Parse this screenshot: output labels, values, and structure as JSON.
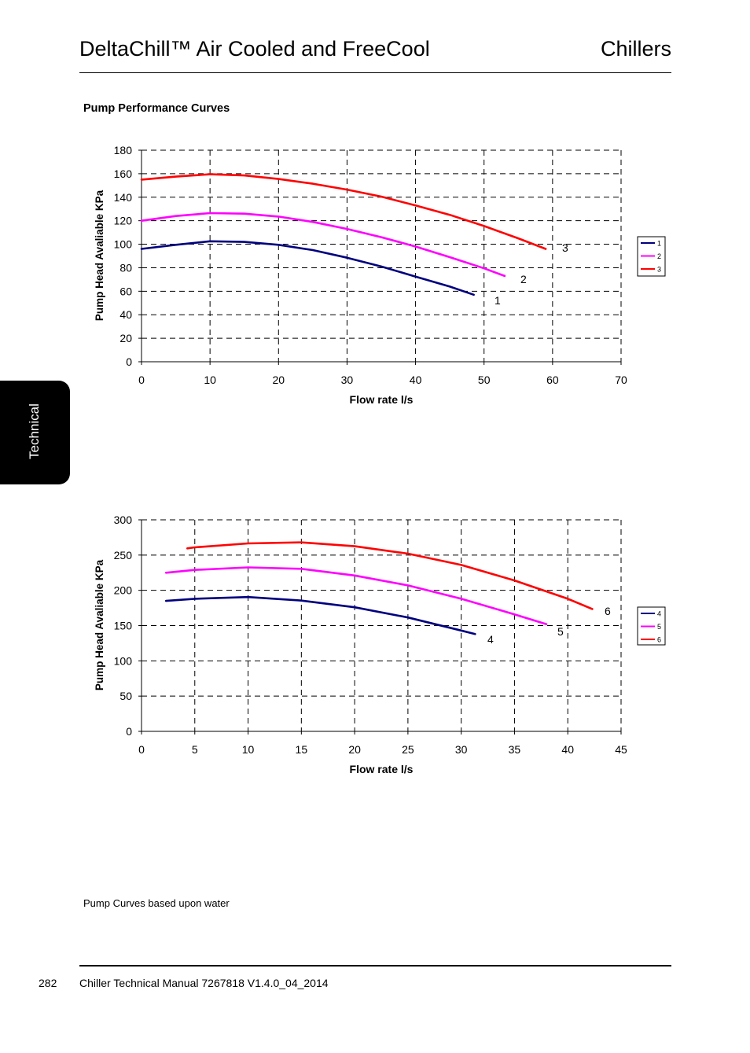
{
  "header": {
    "title": "DeltaChill™ Air Cooled and FreeCool",
    "right": "Chillers"
  },
  "section_title": "Pump Performance Curves",
  "side_tab": "Technical",
  "note": "Pump Curves based upon water",
  "footer": {
    "page_number": "282",
    "text": "Chiller Technical Manual 7267818 V1.4.0_04_2014"
  },
  "colors": {
    "navy": "#00007f",
    "magenta": "#ff00ff",
    "red": "#ff0000"
  },
  "chart_data": [
    {
      "type": "line",
      "xlabel": "Flow rate l/s",
      "ylabel": "Pump Head Avaliable KPa",
      "xlim": [
        0,
        70
      ],
      "ylim": [
        0,
        180
      ],
      "xticks": [
        0,
        10,
        20,
        30,
        40,
        50,
        60,
        70
      ],
      "yticks": [
        0,
        20,
        40,
        60,
        80,
        100,
        120,
        140,
        160,
        180
      ],
      "grid": true,
      "legend_position": "right",
      "series": [
        {
          "name": "1",
          "color": "#00007f",
          "x": [
            0,
            5,
            10,
            15,
            20,
            25,
            30,
            35,
            40,
            45,
            48.5
          ],
          "y": [
            96,
            99.5,
            102.5,
            102,
            99.5,
            95,
            88.5,
            81,
            72.5,
            64,
            57
          ]
        },
        {
          "name": "2",
          "color": "#ff00ff",
          "x": [
            0,
            5,
            10,
            15,
            20,
            25,
            30,
            35,
            40,
            45,
            50,
            53
          ],
          "y": [
            120,
            124,
            126.5,
            126,
            123.5,
            119,
            113,
            106,
            98,
            89,
            79.5,
            73
          ]
        },
        {
          "name": "3",
          "color": "#ff0000",
          "x": [
            0,
            5,
            10,
            15,
            20,
            25,
            30,
            35,
            40,
            45,
            50,
            55,
            59
          ]
        },
        {
          "name": "3-y",
          "color": "#ff0000",
          "y": [
            155,
            157.5,
            159.5,
            158.5,
            155.5,
            151.5,
            146.5,
            140.5,
            133,
            125,
            115.5,
            105,
            96
          ]
        }
      ],
      "end_labels": [
        "1",
        "2",
        "3"
      ]
    },
    {
      "type": "line",
      "xlabel": "Flow rate l/s",
      "ylabel": "Pump Head Avaliable KPa",
      "xlim": [
        0,
        45
      ],
      "ylim": [
        0,
        300
      ],
      "xticks": [
        0,
        5,
        10,
        15,
        20,
        25,
        30,
        35,
        40,
        45
      ],
      "yticks": [
        0,
        50,
        100,
        150,
        200,
        250,
        300
      ],
      "grid": true,
      "legend_position": "right",
      "series": [
        {
          "name": "4",
          "color": "#00007f",
          "x": [
            2.3,
            5,
            10,
            15,
            20,
            25,
            30,
            31.3
          ],
          "y": [
            185,
            188,
            190.5,
            185.5,
            176,
            161.5,
            143,
            138
          ]
        },
        {
          "name": "5",
          "color": "#ff00ff",
          "x": [
            2.3,
            5,
            10,
            15,
            20,
            25,
            30,
            35,
            38
          ],
          "y": [
            225,
            229,
            232.5,
            230.5,
            221,
            207,
            188,
            166,
            152
          ]
        },
        {
          "name": "6",
          "color": "#ff0000",
          "x": [
            4.3,
            5,
            10,
            15,
            20,
            25,
            30,
            35,
            40,
            42.3
          ],
          "y": [
            259.5,
            261,
            266.5,
            268,
            262.5,
            252,
            236,
            214,
            188,
            173.5
          ]
        }
      ],
      "end_labels": [
        "4",
        "5",
        "6"
      ]
    }
  ]
}
